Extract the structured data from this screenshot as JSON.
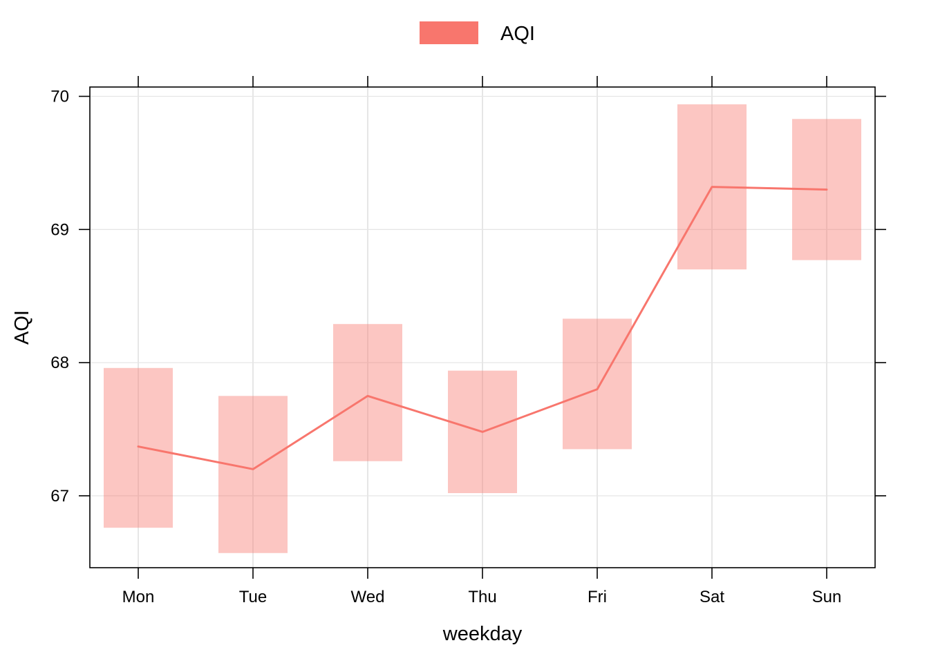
{
  "chart_data": {
    "type": "line",
    "categories": [
      "Mon",
      "Tue",
      "Wed",
      "Thu",
      "Fri",
      "Sat",
      "Sun"
    ],
    "series": [
      {
        "name": "AQI",
        "values": [
          67.37,
          67.2,
          67.75,
          67.48,
          67.8,
          69.32,
          69.3
        ],
        "lower": [
          66.76,
          66.57,
          67.26,
          67.02,
          67.35,
          68.7,
          68.77
        ],
        "upper": [
          67.96,
          67.75,
          68.29,
          67.94,
          68.33,
          69.94,
          69.83
        ]
      }
    ],
    "xlabel": "weekday",
    "ylabel": "AQI",
    "ylim": [
      66.46,
      70.07
    ],
    "yticks": [
      "67",
      "68",
      "69",
      "70"
    ],
    "grid": true,
    "legend_position": "top-center",
    "colors": {
      "line": "#F8766D",
      "band": "#F8766D",
      "grid": "#e6e6e6",
      "axis": "#000000"
    }
  }
}
